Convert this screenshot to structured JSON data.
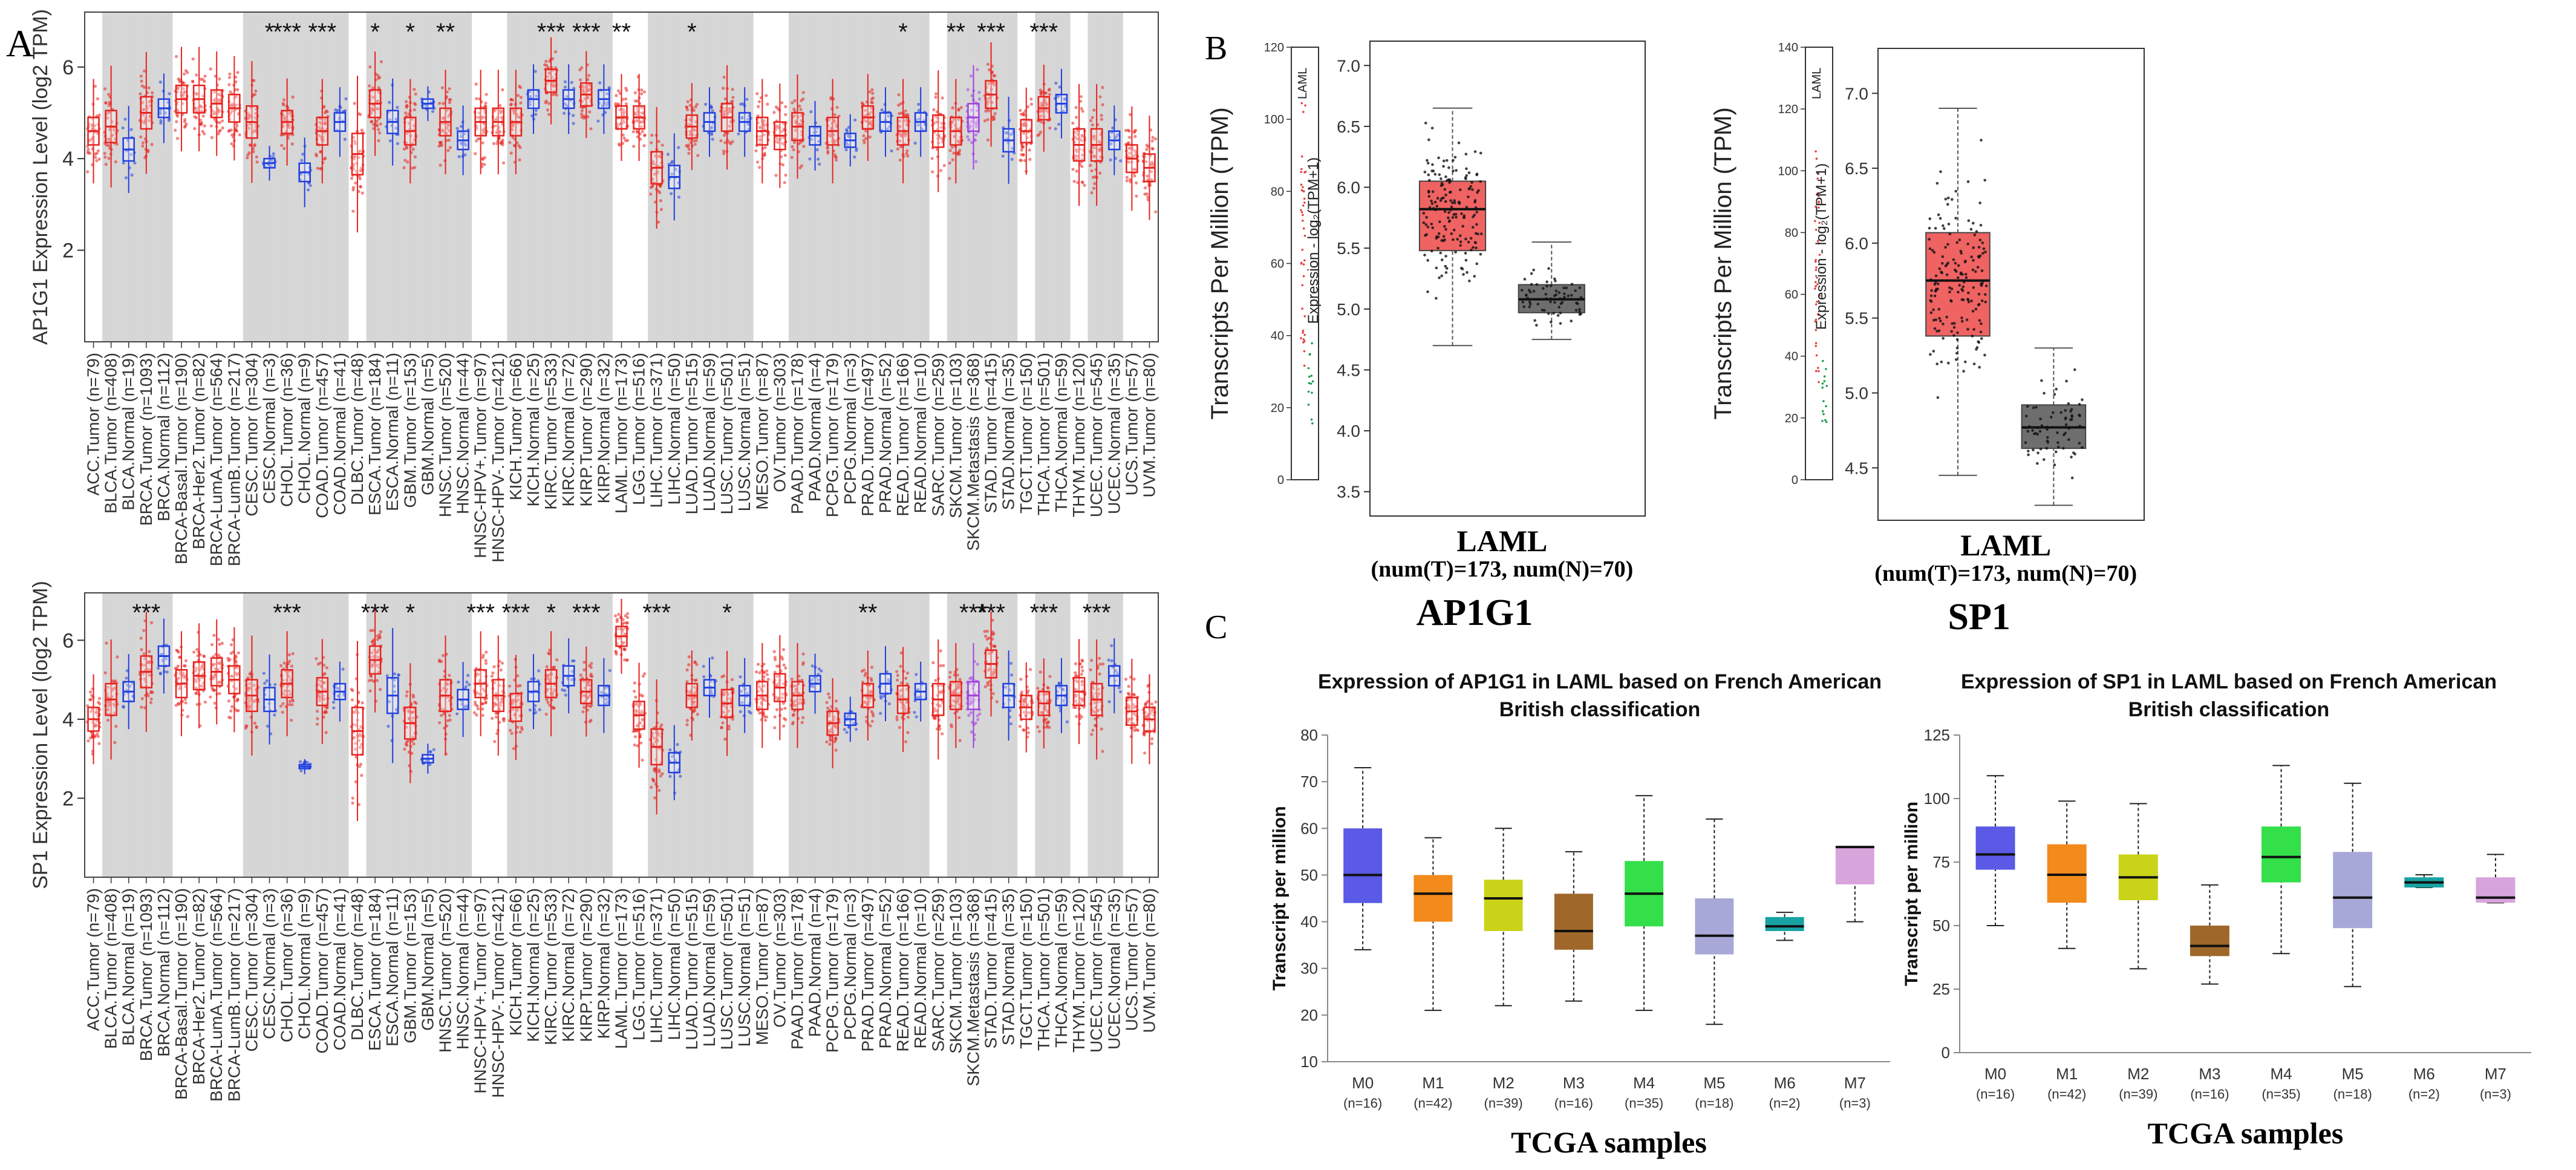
{
  "panel_labels": {
    "a": "A",
    "b": "B",
    "c": "C"
  },
  "chart_data": [
    {
      "id": "a_top",
      "type": "box",
      "title": "",
      "ylabel": "AP1G1 Expression Level (log2 TPM)",
      "ylim": [
        0,
        7.2
      ],
      "yticks": [
        2,
        4,
        6
      ],
      "categories": [
        "ACC.Tumor (n=79)",
        "BLCA.Tumor (n=408)",
        "BLCA.Normal (n=19)",
        "BRCA.Tumor (n=1093)",
        "BRCA.Normal (n=112)",
        "BRCA-Basal.Tumor (n=190)",
        "BRCA-Her2.Tumor (n=82)",
        "BRCA-LumA.Tumor (n=564)",
        "BRCA-LumB.Tumor (n=217)",
        "CESC.Tumor (n=304)",
        "CESC.Normal (n=3)",
        "CHOL.Tumor (n=36)",
        "CHOL.Normal (n=9)",
        "COAD.Tumor (n=457)",
        "COAD.Normal (n=41)",
        "DLBC.Tumor (n=48)",
        "ESCA.Tumor (n=184)",
        "ESCA.Normal (n=11)",
        "GBM.Tumor (n=153)",
        "GBM.Normal (n=5)",
        "HNSC.Tumor (n=520)",
        "HNSC.Normal (n=44)",
        "HNSC-HPV+.Tumor (n=97)",
        "HNSC-HPV-.Tumor (n=421)",
        "KICH.Tumor (n=66)",
        "KICH.Normal (n=25)",
        "KIRC.Tumor (n=533)",
        "KIRC.Normal (n=72)",
        "KIRP.Tumor (n=290)",
        "KIRP.Normal (n=32)",
        "LAML.Tumor (n=173)",
        "LGG.Tumor (n=516)",
        "LIHC.Tumor (n=371)",
        "LIHC.Normal (n=50)",
        "LUAD.Tumor (n=515)",
        "LUAD.Normal (n=59)",
        "LUSC.Tumor (n=501)",
        "LUSC.Normal (n=51)",
        "MESO.Tumor (n=87)",
        "OV.Tumor (n=303)",
        "PAAD.Tumor (n=178)",
        "PAAD.Normal (n=4)",
        "PCPG.Tumor (n=179)",
        "PCPG.Normal (n=3)",
        "PRAD.Tumor (n=497)",
        "PRAD.Normal (n=52)",
        "READ.Tumor (n=166)",
        "READ.Normal (n=10)",
        "SARC.Tumor (n=259)",
        "SKCM.Tumor (n=103)",
        "SKCM.Metastasis (n=368)",
        "STAD.Tumor (n=415)",
        "STAD.Normal (n=35)",
        "TGCT.Tumor (n=150)",
        "THCA.Tumor (n=501)",
        "THCA.Normal (n=59)",
        "THYM.Tumor (n=120)",
        "UCEC.Tumor (n=545)",
        "UCEC.Normal (n=35)",
        "UCS.Tumor (n=57)",
        "UVM.Tumor (n=80)"
      ],
      "medians": [
        4.6,
        4.7,
        4.2,
        5.0,
        5.1,
        5.3,
        5.3,
        5.2,
        5.1,
        4.8,
        3.9,
        4.8,
        3.7,
        4.6,
        4.8,
        4.1,
        5.2,
        4.8,
        4.6,
        5.2,
        4.8,
        4.4,
        4.8,
        4.8,
        4.8,
        5.3,
        5.7,
        5.3,
        5.4,
        5.3,
        4.9,
        4.9,
        3.8,
        3.6,
        4.7,
        4.8,
        4.9,
        4.8,
        4.6,
        4.5,
        4.7,
        4.5,
        4.6,
        4.4,
        4.9,
        4.8,
        4.6,
        4.8,
        4.6,
        4.6,
        4.9,
        5.4,
        4.4,
        4.6,
        5.1,
        5.2,
        4.3,
        4.3,
        4.4,
        4.0,
        3.8
      ],
      "iqr": [
        0.6,
        0.7,
        0.5,
        0.7,
        0.4,
        0.6,
        0.6,
        0.6,
        0.6,
        0.7,
        0.2,
        0.5,
        0.4,
        0.6,
        0.4,
        0.9,
        0.6,
        0.5,
        0.6,
        0.2,
        0.6,
        0.4,
        0.6,
        0.6,
        0.6,
        0.4,
        0.5,
        0.4,
        0.5,
        0.4,
        0.5,
        0.5,
        0.7,
        0.5,
        0.5,
        0.4,
        0.6,
        0.4,
        0.6,
        0.6,
        0.6,
        0.4,
        0.6,
        0.3,
        0.5,
        0.4,
        0.6,
        0.4,
        0.7,
        0.6,
        0.6,
        0.6,
        0.5,
        0.5,
        0.5,
        0.4,
        0.7,
        0.7,
        0.4,
        0.6,
        0.6
      ],
      "groups": [
        "t",
        "t",
        "n",
        "t",
        "n",
        "t",
        "t",
        "t",
        "t",
        "t",
        "n",
        "t",
        "n",
        "t",
        "n",
        "t",
        "t",
        "n",
        "t",
        "n",
        "t",
        "n",
        "t",
        "t",
        "t",
        "n",
        "t",
        "n",
        "t",
        "n",
        "t",
        "t",
        "t",
        "n",
        "t",
        "n",
        "t",
        "n",
        "t",
        "t",
        "t",
        "n",
        "t",
        "n",
        "t",
        "n",
        "t",
        "n",
        "t",
        "t",
        "m",
        "t",
        "n",
        "t",
        "t",
        "n",
        "t",
        "t",
        "n",
        "t",
        "t"
      ],
      "shaded": [
        1,
        2,
        3,
        4,
        9,
        10,
        11,
        12,
        13,
        14,
        16,
        17,
        18,
        19,
        20,
        21,
        24,
        25,
        26,
        27,
        28,
        29,
        32,
        33,
        34,
        35,
        36,
        37,
        40,
        41,
        42,
        43,
        44,
        45,
        46,
        47,
        49,
        50,
        51,
        52,
        54,
        55,
        57,
        58
      ],
      "significance": {
        "10": "*",
        "11": "***",
        "13": "***",
        "16": "*",
        "18": "*",
        "20": "**",
        "26": "***",
        "28": "***",
        "30": "**",
        "34": "*",
        "46": "*",
        "49": "**",
        "51": "***",
        "54": "***"
      },
      "colors": {
        "tumor": "#e8231f",
        "normal": "#1f3fe0",
        "metastasis": "#a040e0",
        "shade": "#d6d6d6"
      }
    },
    {
      "id": "a_bottom",
      "type": "box",
      "title": "",
      "ylabel": "SP1 Expression Level (log2 TPM)",
      "ylim": [
        0,
        7.2
      ],
      "yticks": [
        2,
        4,
        6
      ],
      "categories": [
        "ACC.Tumor (n=79)",
        "BLCA.Tumor (n=408)",
        "BLCA.Normal (n=19)",
        "BRCA.Tumor (n=1093)",
        "BRCA.Normal (n=112)",
        "BRCA-Basal.Tumor (n=190)",
        "BRCA-Her2.Tumor (n=82)",
        "BRCA-LumA.Tumor (n=564)",
        "BRCA-LumB.Tumor (n=217)",
        "CESC.Tumor (n=304)",
        "CESC.Normal (n=3)",
        "CHOL.Tumor (n=36)",
        "CHOL.Normal (n=9)",
        "COAD.Tumor (n=457)",
        "COAD.Normal (n=41)",
        "DLBC.Tumor (n=48)",
        "ESCA.Tumor (n=184)",
        "ESCA.Normal (n=11)",
        "GBM.Tumor (n=153)",
        "GBM.Normal (n=5)",
        "HNSC.Tumor (n=520)",
        "HNSC.Normal (n=44)",
        "HNSC-HPV+.Tumor (n=97)",
        "HNSC-HPV-.Tumor (n=421)",
        "KICH.Tumor (n=66)",
        "KICH.Normal (n=25)",
        "KIRC.Tumor (n=533)",
        "KIRC.Normal (n=72)",
        "KIRP.Tumor (n=290)",
        "KIRP.Normal (n=32)",
        "LAML.Tumor (n=173)",
        "LGG.Tumor (n=516)",
        "LIHC.Tumor (n=371)",
        "LIHC.Normal (n=50)",
        "LUAD.Tumor (n=515)",
        "LUAD.Normal (n=59)",
        "LUSC.Tumor (n=501)",
        "LUSC.Normal (n=51)",
        "MESO.Tumor (n=87)",
        "OV.Tumor (n=303)",
        "PAAD.Tumor (n=178)",
        "PAAD.Normal (n=4)",
        "PCPG.Tumor (n=179)",
        "PCPG.Normal (n=3)",
        "PRAD.Tumor (n=497)",
        "PRAD.Normal (n=52)",
        "READ.Tumor (n=166)",
        "READ.Normal (n=10)",
        "SARC.Tumor (n=259)",
        "SKCM.Tumor (n=103)",
        "SKCM.Metastasis (n=368)",
        "STAD.Tumor (n=415)",
        "STAD.Normal (n=35)",
        "TGCT.Tumor (n=150)",
        "THCA.Tumor (n=501)",
        "THCA.Normal (n=59)",
        "THYM.Tumor (n=120)",
        "UCEC.Tumor (n=545)",
        "UCEC.Normal (n=35)",
        "UCS.Tumor (n=57)",
        "UVM.Tumor (n=80)"
      ],
      "medians": [
        4.0,
        4.5,
        4.7,
        5.2,
        5.6,
        4.9,
        5.1,
        5.2,
        5.0,
        4.6,
        4.5,
        4.9,
        2.8,
        4.7,
        4.7,
        3.7,
        5.5,
        4.6,
        3.9,
        3.0,
        4.6,
        4.5,
        4.9,
        4.6,
        4.3,
        4.7,
        4.9,
        5.1,
        4.7,
        4.6,
        6.1,
        4.1,
        3.3,
        2.9,
        4.6,
        4.8,
        4.4,
        4.6,
        4.6,
        4.8,
        4.6,
        4.9,
        3.9,
        4.0,
        4.6,
        4.9,
        4.5,
        4.7,
        4.5,
        4.6,
        4.6,
        5.4,
        4.6,
        4.3,
        4.4,
        4.6,
        4.7,
        4.5,
        5.1,
        4.2,
        4.0
      ],
      "iqr": [
        0.6,
        0.8,
        0.5,
        0.8,
        0.5,
        0.7,
        0.7,
        0.7,
        0.7,
        0.8,
        0.6,
        0.7,
        0.1,
        0.7,
        0.4,
        1.2,
        0.7,
        0.9,
        0.8,
        0.2,
        0.8,
        0.5,
        0.7,
        0.8,
        0.7,
        0.5,
        0.7,
        0.5,
        0.6,
        0.5,
        0.5,
        0.7,
        0.9,
        0.5,
        0.6,
        0.4,
        0.7,
        0.5,
        0.7,
        0.7,
        0.7,
        0.4,
        0.6,
        0.3,
        0.6,
        0.5,
        0.7,
        0.4,
        0.8,
        0.7,
        0.7,
        0.7,
        0.6,
        0.6,
        0.6,
        0.5,
        0.7,
        0.8,
        0.5,
        0.7,
        0.6
      ],
      "groups": [
        "t",
        "t",
        "n",
        "t",
        "n",
        "t",
        "t",
        "t",
        "t",
        "t",
        "n",
        "t",
        "n",
        "t",
        "n",
        "t",
        "t",
        "n",
        "t",
        "n",
        "t",
        "n",
        "t",
        "t",
        "t",
        "n",
        "t",
        "n",
        "t",
        "n",
        "t",
        "t",
        "t",
        "n",
        "t",
        "n",
        "t",
        "n",
        "t",
        "t",
        "t",
        "n",
        "t",
        "n",
        "t",
        "n",
        "t",
        "n",
        "t",
        "t",
        "m",
        "t",
        "n",
        "t",
        "t",
        "n",
        "t",
        "t",
        "n",
        "t",
        "t"
      ],
      "shaded": [
        1,
        2,
        3,
        4,
        9,
        10,
        11,
        12,
        13,
        14,
        16,
        17,
        18,
        19,
        20,
        21,
        24,
        25,
        26,
        27,
        28,
        29,
        32,
        33,
        34,
        35,
        36,
        37,
        40,
        41,
        42,
        43,
        44,
        45,
        46,
        47,
        49,
        50,
        51,
        52,
        54,
        55,
        57,
        58
      ],
      "significance": {
        "3": "***",
        "11": "***",
        "16": "***",
        "18": "*",
        "22": "***",
        "24": "***",
        "26": "*",
        "28": "***",
        "32": "***",
        "36": "*",
        "44": "**",
        "50": "***",
        "51": "***",
        "54": "***",
        "57": "***"
      },
      "colors": {
        "tumor": "#e8231f",
        "normal": "#1f3fe0",
        "metastasis": "#a040e0",
        "shade": "#d6d6d6"
      }
    },
    {
      "id": "b_left",
      "type": "box",
      "gene": "AP1G1",
      "ylabel": "Transcripts Per Million (TPM)",
      "inner_ylabel": "Expression - log₂(TPM+1)",
      "strip_label": "LAML",
      "strip_ylim": [
        0,
        120
      ],
      "strip_yticks": [
        0,
        20,
        40,
        60,
        80,
        100,
        120
      ],
      "ylim": [
        3.3,
        7.2
      ],
      "yticks": [
        3.5,
        4.0,
        4.5,
        5.0,
        5.5,
        6.0,
        6.5,
        7.0
      ],
      "categories": [
        "Tumor",
        "Normal"
      ],
      "boxes": [
        {
          "name": "Tumor",
          "min": 4.7,
          "q1": 5.48,
          "median": 5.82,
          "q3": 6.05,
          "max": 6.65,
          "color": "#f06363"
        },
        {
          "name": "Normal",
          "min": 4.75,
          "q1": 4.97,
          "median": 5.08,
          "q3": 5.2,
          "max": 5.55,
          "color": "#6e6e6e"
        }
      ],
      "xlabel": "LAML",
      "xsub": "(num(T)=173, num(N)=70)",
      "caption": "AP1G1"
    },
    {
      "id": "b_right",
      "type": "box",
      "gene": "SP1",
      "ylabel": "Transcripts Per Million (TPM)",
      "inner_ylabel": "Expression - log₂(TPM+1)",
      "strip_label": "LAML",
      "strip_ylim": [
        0,
        140
      ],
      "strip_yticks": [
        0,
        20,
        40,
        60,
        80,
        100,
        120,
        140
      ],
      "ylim": [
        4.15,
        7.3
      ],
      "yticks": [
        4.5,
        5.0,
        5.5,
        6.0,
        6.5,
        7.0
      ],
      "categories": [
        "Tumor",
        "Normal"
      ],
      "boxes": [
        {
          "name": "Tumor",
          "min": 4.45,
          "q1": 5.38,
          "median": 5.75,
          "q3": 6.07,
          "max": 6.9,
          "color": "#f06363"
        },
        {
          "name": "Normal",
          "min": 4.25,
          "q1": 4.63,
          "median": 4.77,
          "q3": 4.92,
          "max": 5.3,
          "color": "#6e6e6e"
        }
      ],
      "xlabel": "LAML",
      "xsub": "(num(T)=173, num(N)=70)",
      "caption": "SP1"
    },
    {
      "id": "c_left",
      "type": "box",
      "title": "Expression of AP1G1 in LAML based on French American British classification",
      "title_lines": [
        "Expression of AP1G1 in LAML based on French American",
        "British classification"
      ],
      "ylabel": "Transcript per million",
      "xlabel": "TCGA samples",
      "ylim": [
        10,
        80
      ],
      "yticks": [
        10,
        20,
        30,
        40,
        50,
        60,
        70,
        80
      ],
      "categories": [
        "M0",
        "M1",
        "M2",
        "M3",
        "M4",
        "M5",
        "M6",
        "M7"
      ],
      "counts": [
        "(n=16)",
        "(n=42)",
        "(n=39)",
        "(n=16)",
        "(n=35)",
        "(n=18)",
        "(n=2)",
        "(n=3)"
      ],
      "boxes": [
        {
          "min": 34,
          "q1": 44,
          "median": 50,
          "q3": 60,
          "max": 73,
          "color": "#5a5ae6"
        },
        {
          "min": 21,
          "q1": 40,
          "median": 46,
          "q3": 50,
          "max": 58,
          "color": "#f28a1c"
        },
        {
          "min": 22,
          "q1": 38,
          "median": 45,
          "q3": 49,
          "max": 60,
          "color": "#c9d418"
        },
        {
          "min": 23,
          "q1": 34,
          "median": 38,
          "q3": 46,
          "max": 55,
          "color": "#a0672a"
        },
        {
          "min": 21,
          "q1": 39,
          "median": 46,
          "q3": 53,
          "max": 67,
          "color": "#33e04a"
        },
        {
          "min": 18,
          "q1": 33,
          "median": 37,
          "q3": 45,
          "max": 62,
          "color": "#a8a8d8"
        },
        {
          "min": 36,
          "q1": 38,
          "median": 39,
          "q3": 41,
          "max": 42,
          "color": "#18a3a3"
        },
        {
          "min": 40,
          "q1": 48,
          "median": 56,
          "q3": 56,
          "max": 56,
          "color": "#d8a4dc"
        }
      ]
    },
    {
      "id": "c_right",
      "type": "box",
      "title": "Expression of SP1 in LAML based on French American British classification",
      "title_lines": [
        "Expression of SP1 in LAML based on French American",
        "British classification"
      ],
      "ylabel": "Transcript per million",
      "xlabel": "TCGA samples",
      "ylim": [
        0,
        125
      ],
      "yticks": [
        0,
        25,
        50,
        75,
        100,
        125
      ],
      "categories": [
        "M0",
        "M1",
        "M2",
        "M3",
        "M4",
        "M5",
        "M6",
        "M7"
      ],
      "counts": [
        "(n=16)",
        "(n=42)",
        "(n=39)",
        "(n=16)",
        "(n=35)",
        "(n=18)",
        "(n=2)",
        "(n=3)"
      ],
      "boxes": [
        {
          "min": 50,
          "q1": 72,
          "median": 78,
          "q3": 89,
          "max": 109,
          "color": "#5a5ae6"
        },
        {
          "min": 41,
          "q1": 59,
          "median": 70,
          "q3": 82,
          "max": 99,
          "color": "#f28a1c"
        },
        {
          "min": 33,
          "q1": 60,
          "median": 69,
          "q3": 78,
          "max": 98,
          "color": "#c9d418"
        },
        {
          "min": 27,
          "q1": 38,
          "median": 42,
          "q3": 50,
          "max": 66,
          "color": "#a0672a"
        },
        {
          "min": 39,
          "q1": 67,
          "median": 77,
          "q3": 89,
          "max": 113,
          "color": "#33e04a"
        },
        {
          "min": 26,
          "q1": 49,
          "median": 61,
          "q3": 79,
          "max": 106,
          "color": "#a8a8d8"
        },
        {
          "min": 65,
          "q1": 65,
          "median": 67,
          "q3": 69,
          "max": 70,
          "color": "#18a3a3"
        },
        {
          "min": 59,
          "q1": 59,
          "median": 61,
          "q3": 69,
          "max": 78,
          "color": "#d8a4dc"
        }
      ]
    }
  ]
}
